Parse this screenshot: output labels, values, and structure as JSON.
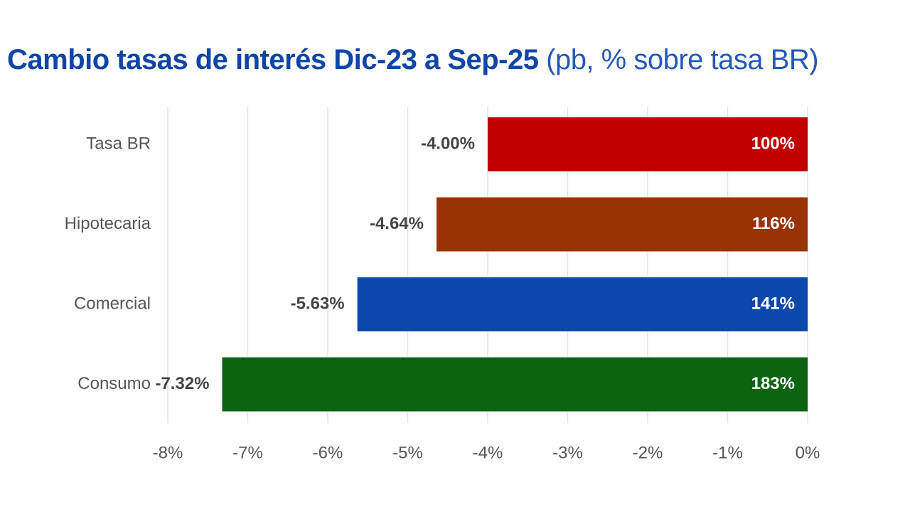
{
  "chart_data": {
    "type": "bar",
    "orientation": "horizontal",
    "title": "Cambio tasas de interés Dic-23 a Sep-25",
    "subtitle": "(pb, % sobre tasa BR)",
    "categories": [
      "Tasa BR",
      "Hipotecaria",
      "Comercial",
      "Consumo"
    ],
    "values": [
      -4.0,
      -4.64,
      -5.63,
      -7.32
    ],
    "value_labels": [
      "-4.00%",
      "-4.64%",
      "-5.63%",
      "-7.32%"
    ],
    "ratio_labels": [
      "100%",
      "116%",
      "141%",
      "183%"
    ],
    "colors": [
      "#c00000",
      "#993306",
      "#0b48ac",
      "#0a6410"
    ],
    "xlim": [
      -8,
      0
    ],
    "xticks": [
      -8,
      -7,
      -6,
      -5,
      -4,
      -3,
      -2,
      -1,
      0
    ],
    "xtick_labels": [
      "-8%",
      "-7%",
      "-6%",
      "-5%",
      "-4%",
      "-3%",
      "-2%",
      "-1%",
      "0%"
    ],
    "grid": true,
    "xlabel": "",
    "ylabel": ""
  }
}
